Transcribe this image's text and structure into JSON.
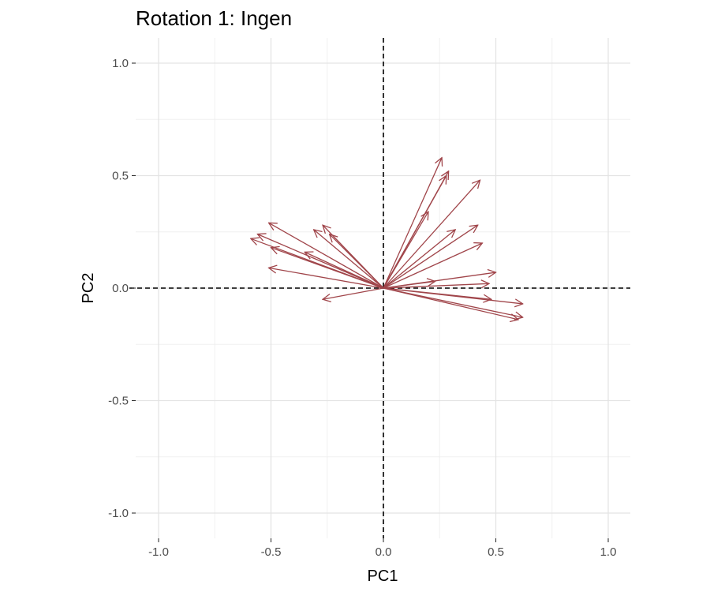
{
  "chart_data": {
    "type": "scatter",
    "subtype": "vector-arrows",
    "title": "Rotation 1: Ingen",
    "xlabel": "PC1",
    "ylabel": "PC2",
    "xlim": [
      -1.1,
      1.1
    ],
    "ylim": [
      -1.1,
      1.1
    ],
    "x_ticks": [
      -1.0,
      -0.5,
      0.0,
      0.5,
      1.0
    ],
    "y_ticks": [
      -1.0,
      -0.5,
      0.0,
      0.5,
      1.0
    ],
    "x_tick_labels": [
      "-1.0",
      "-0.5",
      "0.0",
      "0.5",
      "1.0"
    ],
    "y_tick_labels": [
      "-1.0",
      "-0.5",
      "0.0",
      "0.5",
      "1.0"
    ],
    "grid": true,
    "reference_lines": {
      "x": 0,
      "y": 0,
      "style": "dashed"
    },
    "arrow_color": "#a0454a",
    "vectors": [
      {
        "x": 0.26,
        "y": 0.58
      },
      {
        "x": 0.29,
        "y": 0.52
      },
      {
        "x": 0.28,
        "y": 0.5
      },
      {
        "x": 0.43,
        "y": 0.48
      },
      {
        "x": 0.2,
        "y": 0.34
      },
      {
        "x": 0.42,
        "y": 0.28
      },
      {
        "x": 0.32,
        "y": 0.26
      },
      {
        "x": 0.44,
        "y": 0.2
      },
      {
        "x": 0.5,
        "y": 0.07
      },
      {
        "x": 0.23,
        "y": 0.03
      },
      {
        "x": 0.47,
        "y": 0.02
      },
      {
        "x": 0.48,
        "y": -0.05
      },
      {
        "x": 0.62,
        "y": -0.07
      },
      {
        "x": 0.62,
        "y": -0.13
      },
      {
        "x": 0.6,
        "y": -0.14
      },
      {
        "x": -0.51,
        "y": 0.29
      },
      {
        "x": -0.59,
        "y": 0.22
      },
      {
        "x": -0.56,
        "y": 0.24
      },
      {
        "x": -0.5,
        "y": 0.18
      },
      {
        "x": -0.27,
        "y": 0.28
      },
      {
        "x": -0.31,
        "y": 0.26
      },
      {
        "x": -0.24,
        "y": 0.24
      },
      {
        "x": -0.35,
        "y": 0.16
      },
      {
        "x": -0.51,
        "y": 0.09
      },
      {
        "x": -0.27,
        "y": -0.05
      }
    ]
  }
}
